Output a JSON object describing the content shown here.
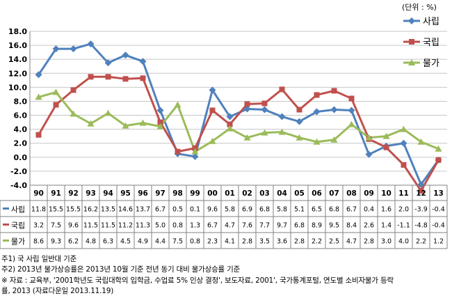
{
  "chart_data": {
    "type": "line",
    "unit_label": "(단위 : %)",
    "categories": [
      "90",
      "91",
      "92",
      "93",
      "94",
      "95",
      "96",
      "97",
      "98",
      "99",
      "00",
      "01",
      "02",
      "03",
      "04",
      "05",
      "06",
      "07",
      "08",
      "09",
      "10",
      "11",
      "12",
      "13"
    ],
    "ylim": [
      -4.0,
      18.0
    ],
    "ytick_labels": [
      "18.0",
      "16.0",
      "14.0",
      "12.0",
      "10.0",
      "8.0",
      "6.0",
      "4.0",
      "2.0",
      "0.0",
      "-2.0",
      "-4.0"
    ],
    "grid": "horizontal",
    "legend_position": "top-right",
    "series": [
      {
        "name": "사립",
        "color": "#4f81bd",
        "marker": "diamond",
        "values": [
          11.8,
          15.5,
          15.5,
          16.2,
          13.5,
          14.6,
          13.7,
          6.7,
          0.5,
          0.1,
          9.6,
          5.8,
          6.9,
          6.8,
          5.8,
          5.1,
          6.5,
          6.8,
          6.7,
          0.4,
          1.6,
          2.0,
          -3.9,
          -0.4
        ],
        "labels": [
          "11.8",
          "15.5",
          "15.5",
          "16.2",
          "13.5",
          "14.6",
          "13.7",
          "6.7",
          "0.5",
          "0.1",
          "9.6",
          "5.8",
          "6.9",
          "6.8",
          "5.8",
          "5.1",
          "6.5",
          "6.8",
          "6.7",
          "0.4",
          "1.6",
          "2.0",
          "-3.9",
          "-0.4"
        ]
      },
      {
        "name": "국립",
        "color": "#c0504d",
        "marker": "square",
        "values": [
          3.2,
          7.5,
          9.6,
          11.5,
          11.5,
          11.2,
          11.3,
          5.0,
          0.8,
          1.3,
          6.7,
          4.7,
          7.6,
          7.7,
          9.7,
          6.8,
          8.9,
          9.5,
          8.4,
          2.6,
          1.4,
          -1.1,
          -4.8,
          -0.4
        ],
        "labels": [
          "3.2",
          "7.5",
          "9.6",
          "11.5",
          "11.5",
          "11.2",
          "11.3",
          "5.0",
          "0.8",
          "1.3",
          "6.7",
          "4.7",
          "7.6",
          "7.7",
          "9.7",
          "6.8",
          "8.9",
          "9.5",
          "8.4",
          "2.6",
          "1.4",
          "-1.1",
          "-4.8",
          "-0.4"
        ]
      },
      {
        "name": "물가",
        "color": "#9bbb59",
        "marker": "triangle",
        "values": [
          8.6,
          9.3,
          6.2,
          4.8,
          6.3,
          4.5,
          4.9,
          4.4,
          7.5,
          0.8,
          2.3,
          4.1,
          2.8,
          3.5,
          3.6,
          2.8,
          2.2,
          2.5,
          4.7,
          2.8,
          3.0,
          4.0,
          2.2,
          1.2
        ],
        "labels": [
          "8.6",
          "9.3",
          "6.2",
          "4.8",
          "6.3",
          "4.5",
          "4.9",
          "4.4",
          "7.5",
          "0.8",
          "2.3",
          "4.1",
          "2.8",
          "3.5",
          "3.6",
          "2.8",
          "2.2",
          "2.5",
          "4.7",
          "2.8",
          "3.0",
          "4.0",
          "2.2",
          "1.2"
        ]
      }
    ]
  },
  "notes": [
    "주1) 국 사립 일반대 기준",
    "주2) 2013년 물가상승률은 2013년 10월 기준 전년 동기 대비 물가상승률 기준",
    "※ 자료 : 교육부, '2001학년도 국립대학의 입학금, 수업료 5% 인상 결정', 보도자료, 2001', 국가통계포털, 연도별 소비자물가 등락",
    "률, 2013 (자료다운일 2013.11.19)"
  ]
}
